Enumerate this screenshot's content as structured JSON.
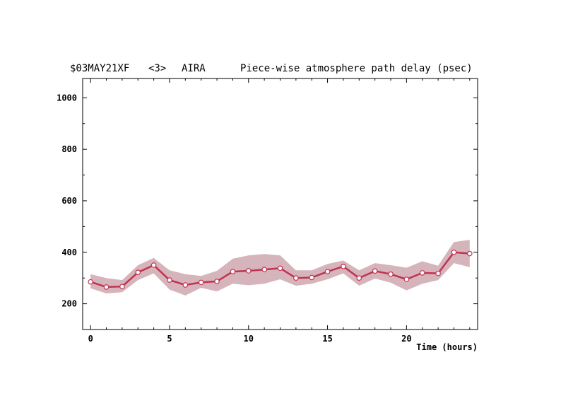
{
  "title": {
    "source": "$03MAY21XF",
    "index": "<3>",
    "station": "AIRA",
    "description": "Piece-wise atmosphere path delay (psec)"
  },
  "chart_data": {
    "type": "line",
    "title": "Piece-wise atmosphere path delay (psec)",
    "xlabel": "Time (hours)",
    "ylabel": "",
    "xlim": [
      -0.5,
      24.5
    ],
    "ylim": [
      100,
      1075
    ],
    "x_ticks": [
      0,
      5,
      10,
      15,
      20
    ],
    "y_ticks": [
      200,
      400,
      600,
      800,
      1000
    ],
    "x_minor_step": 1,
    "y_minor_step": 100,
    "grid": false,
    "line_color": "#c0334f",
    "band_color": "#d6b4bb",
    "marker_fill": "#ffffff",
    "series": [
      {
        "x": [
          0,
          1,
          2,
          3,
          4,
          5,
          6,
          7,
          8,
          9,
          10,
          11,
          12,
          13,
          14,
          15,
          16,
          17,
          18,
          19,
          20,
          21,
          22,
          23,
          24
        ],
        "y": [
          285,
          265,
          267,
          322,
          350,
          292,
          273,
          283,
          287,
          325,
          328,
          333,
          338,
          300,
          302,
          325,
          345,
          300,
          327,
          315,
          295,
          320,
          318,
          400,
          395
        ],
        "upper": [
          315,
          300,
          292,
          350,
          378,
          330,
          315,
          308,
          328,
          375,
          388,
          393,
          388,
          330,
          330,
          355,
          368,
          330,
          358,
          350,
          340,
          365,
          348,
          440,
          448
        ],
        "lower": [
          260,
          240,
          245,
          292,
          318,
          255,
          232,
          262,
          248,
          278,
          272,
          278,
          295,
          270,
          278,
          295,
          318,
          270,
          298,
          282,
          252,
          278,
          292,
          358,
          342
        ]
      }
    ]
  }
}
